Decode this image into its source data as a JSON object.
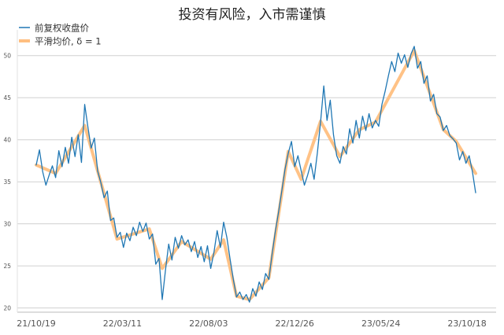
{
  "chart_data": {
    "type": "line",
    "title": "投资有风险，入市需谨慎",
    "xlabel": "",
    "ylabel": "",
    "x_tick_labels": [
      "21/10/19",
      "22/03/11",
      "22/08/03",
      "22/12/26",
      "23/05/24",
      "23/10/18"
    ],
    "y_ticks": [
      20,
      25,
      30,
      35,
      40,
      45,
      50
    ],
    "ylim": [
      19.5,
      52.5
    ],
    "grid": "horizontal",
    "legend_position": "top-left",
    "series": [
      {
        "name": "前复权收盘价",
        "color": "#1f77b4",
        "points": [
          [
            0,
            37.0
          ],
          [
            3,
            38.8
          ],
          [
            6,
            36.2
          ],
          [
            9,
            34.6
          ],
          [
            12,
            35.8
          ],
          [
            15,
            36.9
          ],
          [
            18,
            35.5
          ],
          [
            21,
            38.7
          ],
          [
            24,
            36.8
          ],
          [
            27,
            39.1
          ],
          [
            30,
            37.2
          ],
          [
            33,
            40.3
          ],
          [
            36,
            38.0
          ],
          [
            39,
            40.6
          ],
          [
            42,
            37.3
          ],
          [
            45,
            44.2
          ],
          [
            48,
            41.5
          ],
          [
            51,
            39.0
          ],
          [
            54,
            40.2
          ],
          [
            57,
            36.3
          ],
          [
            60,
            34.9
          ],
          [
            63,
            33.1
          ],
          [
            66,
            33.9
          ],
          [
            69,
            30.4
          ],
          [
            72,
            30.7
          ],
          [
            75,
            28.4
          ],
          [
            78,
            29.0
          ],
          [
            81,
            27.2
          ],
          [
            84,
            28.9
          ],
          [
            87,
            28.0
          ],
          [
            90,
            29.6
          ],
          [
            93,
            28.6
          ],
          [
            96,
            30.2
          ],
          [
            99,
            29.1
          ],
          [
            102,
            30.1
          ],
          [
            105,
            28.2
          ],
          [
            108,
            28.8
          ],
          [
            111,
            25.2
          ],
          [
            114,
            25.9
          ],
          [
            117,
            21.0
          ],
          [
            120,
            24.5
          ],
          [
            123,
            27.6
          ],
          [
            126,
            25.7
          ],
          [
            129,
            28.4
          ],
          [
            132,
            27.1
          ],
          [
            135,
            28.6
          ],
          [
            138,
            27.5
          ],
          [
            141,
            28.1
          ],
          [
            144,
            26.7
          ],
          [
            147,
            27.9
          ],
          [
            150,
            26.0
          ],
          [
            153,
            27.3
          ],
          [
            156,
            25.5
          ],
          [
            159,
            27.4
          ],
          [
            162,
            24.7
          ],
          [
            165,
            26.6
          ],
          [
            168,
            29.2
          ],
          [
            171,
            27.2
          ],
          [
            174,
            30.2
          ],
          [
            177,
            28.4
          ],
          [
            180,
            25.8
          ],
          [
            183,
            23.4
          ],
          [
            186,
            21.3
          ],
          [
            189,
            21.9
          ],
          [
            192,
            21.0
          ],
          [
            195,
            21.6
          ],
          [
            198,
            20.7
          ],
          [
            201,
            22.3
          ],
          [
            204,
            21.4
          ],
          [
            207,
            23.1
          ],
          [
            210,
            22.2
          ],
          [
            213,
            24.1
          ],
          [
            216,
            23.4
          ],
          [
            219,
            26.4
          ],
          [
            222,
            29.1
          ],
          [
            225,
            31.4
          ],
          [
            228,
            33.9
          ],
          [
            231,
            36.5
          ],
          [
            234,
            38.4
          ],
          [
            237,
            39.8
          ],
          [
            240,
            36.8
          ],
          [
            243,
            38.1
          ],
          [
            246,
            36.3
          ],
          [
            249,
            34.6
          ],
          [
            252,
            35.8
          ],
          [
            255,
            37.2
          ],
          [
            258,
            35.3
          ],
          [
            261,
            38.4
          ],
          [
            264,
            42.1
          ],
          [
            267,
            46.4
          ],
          [
            270,
            42.3
          ],
          [
            273,
            44.7
          ],
          [
            276,
            40.6
          ],
          [
            279,
            38.1
          ],
          [
            282,
            37.2
          ],
          [
            285,
            39.2
          ],
          [
            288,
            38.3
          ],
          [
            291,
            41.3
          ],
          [
            294,
            39.6
          ],
          [
            297,
            42.3
          ],
          [
            300,
            40.2
          ],
          [
            303,
            42.8
          ],
          [
            306,
            41.1
          ],
          [
            309,
            43.1
          ],
          [
            312,
            41.4
          ],
          [
            315,
            42.3
          ],
          [
            318,
            41.6
          ],
          [
            321,
            44.2
          ],
          [
            324,
            45.8
          ],
          [
            327,
            47.6
          ],
          [
            330,
            49.3
          ],
          [
            333,
            48.1
          ],
          [
            336,
            50.3
          ],
          [
            339,
            49.1
          ],
          [
            342,
            50.1
          ],
          [
            345,
            48.6
          ],
          [
            348,
            50.2
          ],
          [
            351,
            51.1
          ],
          [
            354,
            48.5
          ],
          [
            357,
            49.3
          ],
          [
            360,
            46.7
          ],
          [
            363,
            47.6
          ],
          [
            366,
            44.6
          ],
          [
            369,
            45.4
          ],
          [
            372,
            43.1
          ],
          [
            375,
            42.7
          ],
          [
            378,
            41.1
          ],
          [
            381,
            41.7
          ],
          [
            384,
            40.5
          ],
          [
            387,
            40.1
          ],
          [
            390,
            39.6
          ],
          [
            393,
            37.6
          ],
          [
            396,
            38.6
          ],
          [
            399,
            37.2
          ],
          [
            402,
            38.1
          ],
          [
            405,
            36.2
          ],
          [
            408,
            33.7
          ]
        ]
      },
      {
        "name": "平滑均价, δ = 1",
        "color": "#ffbf80",
        "points": [
          [
            0,
            37.0
          ],
          [
            18,
            36.0
          ],
          [
            45,
            41.7
          ],
          [
            75,
            28.2
          ],
          [
            105,
            29.4
          ],
          [
            117,
            24.7
          ],
          [
            135,
            27.9
          ],
          [
            162,
            25.8
          ],
          [
            174,
            28.1
          ],
          [
            186,
            21.4
          ],
          [
            198,
            21.0
          ],
          [
            216,
            23.6
          ],
          [
            234,
            38.6
          ],
          [
            246,
            35.3
          ],
          [
            264,
            42.2
          ],
          [
            282,
            38.0
          ],
          [
            300,
            41.2
          ],
          [
            315,
            42.1
          ],
          [
            351,
            50.6
          ],
          [
            378,
            41.2
          ],
          [
            390,
            39.8
          ],
          [
            408,
            36.0
          ]
        ]
      }
    ]
  }
}
